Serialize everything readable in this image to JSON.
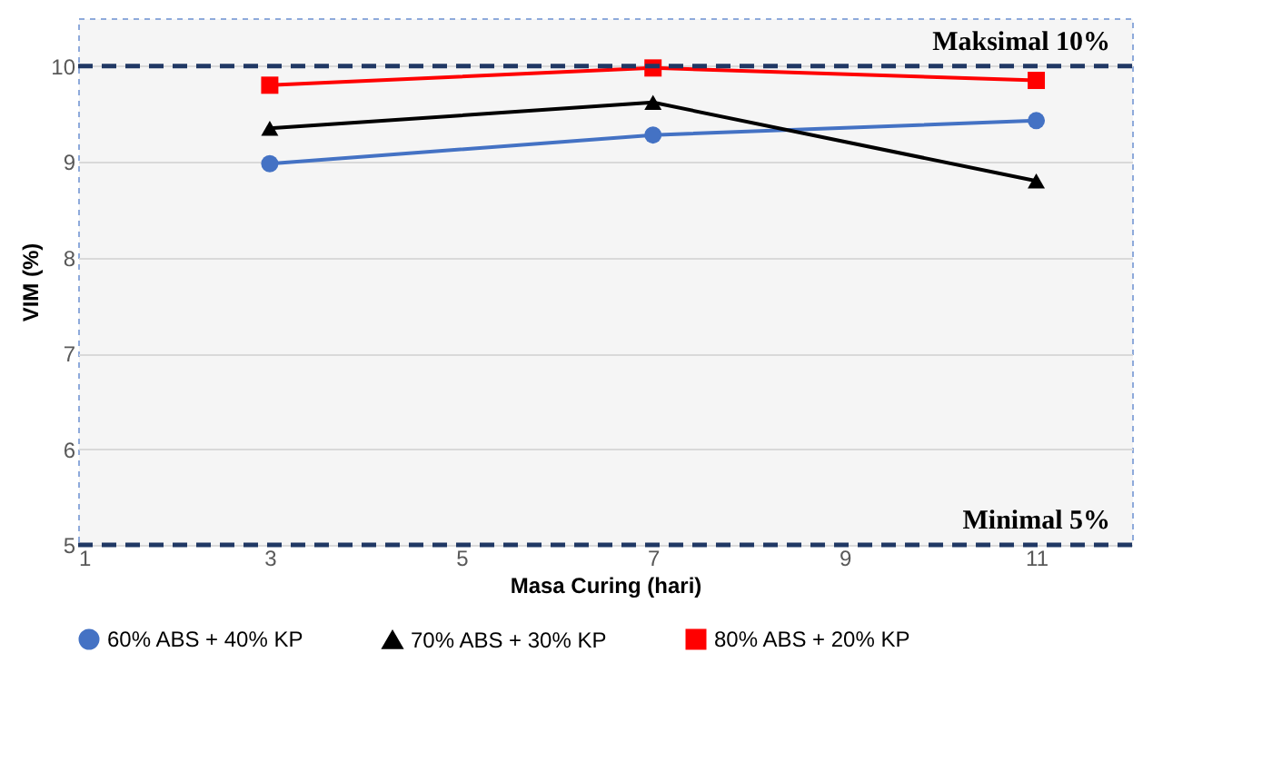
{
  "chart_data": {
    "type": "line",
    "xlabel": "Masa Curing (hari)",
    "ylabel": "VIM (%)",
    "x": [
      3,
      7,
      11
    ],
    "series": [
      {
        "name": "60% ABS + 40% KP",
        "color": "#4472c4",
        "marker": "circle",
        "values": [
          8.98,
          9.28,
          9.43
        ]
      },
      {
        "name": "70% ABS + 30% KP",
        "color": "#000000",
        "marker": "triangle",
        "values": [
          9.35,
          9.62,
          8.8
        ]
      },
      {
        "name": "80% ABS + 20% KP",
        "color": "#ff0000",
        "marker": "square",
        "values": [
          9.8,
          9.98,
          9.85
        ]
      }
    ],
    "xlim": [
      1,
      12
    ],
    "xticks": [
      1,
      3,
      5,
      7,
      9,
      11
    ],
    "ylim": [
      5,
      10.5
    ],
    "yticks": [
      5,
      6,
      7,
      8,
      9,
      10
    ],
    "ref_lines": [
      {
        "axis": "y",
        "value": 10,
        "label": "Maksimal 10%",
        "color": "#203864",
        "line_style": "dashed"
      },
      {
        "axis": "y",
        "value": 5,
        "label": "Minimal 5%",
        "color": "#203864",
        "line_style": "dashed"
      }
    ],
    "grid": "y",
    "legend": "bottom",
    "line_style": "solid"
  }
}
